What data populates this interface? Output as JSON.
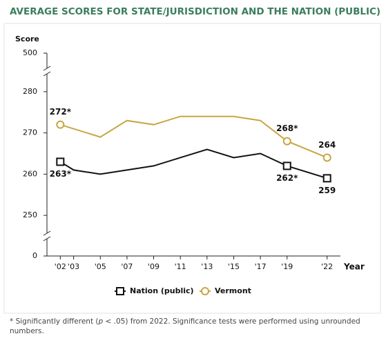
{
  "chart_data": {
    "type": "line",
    "title": "AVERAGE SCORES FOR STATE/JURISDICTION AND THE NATION (PUBLIC)",
    "y_label": "Score",
    "x_label": "Year",
    "xlim": [
      2001,
      2023
    ],
    "xticks": [
      {
        "value": 2002,
        "label": "'02"
      },
      {
        "value": 2003,
        "label": "'03"
      },
      {
        "value": 2005,
        "label": "'05"
      },
      {
        "value": 2007,
        "label": "'07"
      },
      {
        "value": 2009,
        "label": "'09"
      },
      {
        "value": 2011,
        "label": "'11"
      },
      {
        "value": 2013,
        "label": "'13"
      },
      {
        "value": 2015,
        "label": "'15"
      },
      {
        "value": 2017,
        "label": "'17"
      },
      {
        "value": 2019,
        "label": "'19"
      },
      {
        "value": 2022,
        "label": "'22"
      }
    ],
    "ylim": [
      0,
      500
    ],
    "axis_breaks": [
      [
        0,
        245
      ],
      [
        285,
        500
      ]
    ],
    "yticks": [
      0,
      250,
      260,
      270,
      280,
      500
    ],
    "grid": false,
    "series": [
      {
        "name": "Nation (public)",
        "color": "#111111",
        "marker": "square",
        "x": [
          2002,
          2003,
          2005,
          2007,
          2009,
          2011,
          2013,
          2015,
          2017,
          2019,
          2022
        ],
        "values": [
          263,
          261,
          260,
          261,
          262,
          264,
          266,
          264,
          265,
          262,
          259
        ],
        "value_labels": [
          "263*",
          null,
          null,
          null,
          null,
          null,
          null,
          null,
          null,
          "262*",
          "259"
        ]
      },
      {
        "name": "Vermont",
        "color": "#c8a544",
        "marker": "circle",
        "x": [
          2002,
          2005,
          2007,
          2009,
          2011,
          2013,
          2015,
          2017,
          2019,
          2022
        ],
        "values": [
          272,
          269,
          273,
          272,
          274,
          274,
          274,
          273,
          268,
          264
        ],
        "value_labels": [
          "272*",
          null,
          null,
          null,
          null,
          null,
          null,
          null,
          "268*",
          "264"
        ]
      }
    ],
    "footnote": {
      "before": "* Significantly different (",
      "italic": "p",
      "after": " < .05) from 2022. Significance tests were performed using unrounded numbers."
    }
  }
}
